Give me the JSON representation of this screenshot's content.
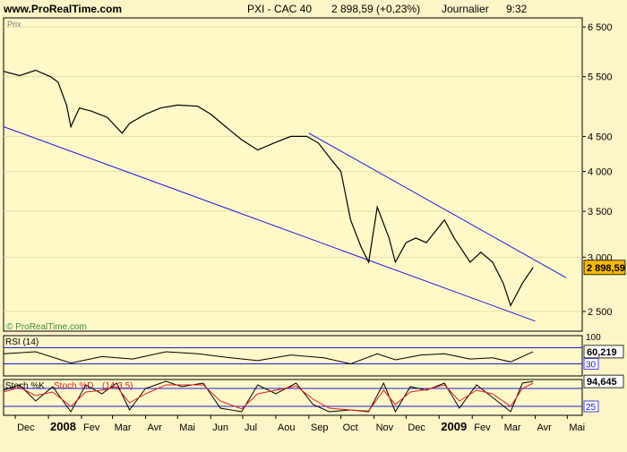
{
  "header": {
    "site": "www.ProRealTime.com",
    "instrument": "PXI - CAC 40",
    "quote": "2 898,59 (+0,23%)",
    "period": "Journalier",
    "time": "9:32"
  },
  "watermark": "© ProRealTime.com",
  "colors": {
    "background": "#fdf5c7",
    "price": "#000000",
    "trendline": "#1a1adf",
    "last_price_badge": "#f5b800",
    "rsi_line": "#000000",
    "stoch_k": "#000000",
    "stoch_d": "#e02020",
    "ref_line": "#1a1adf"
  },
  "chart_data": [
    {
      "type": "line",
      "panel": "price",
      "panel_label": "Prix",
      "title": "PXI - CAC 40",
      "subtitle": "2 898,59 (+0,23%)  Journalier  9:32",
      "x_axis_labels": [
        "Dec",
        "2008",
        "Fev",
        "Mar",
        "Avr",
        "Mai",
        "Jun",
        "Jul",
        "Aou",
        "Sep",
        "Oct",
        "Nov",
        "Dec",
        "2009",
        "Fev",
        "Mar",
        "Avr",
        "Mai"
      ],
      "y_scale": "log",
      "ylim": [
        2340,
        6700
      ],
      "y_ticks": [
        2500,
        3000,
        3500,
        4000,
        4500,
        5500,
        6500
      ],
      "y_tick_labels": [
        "2 500",
        "3 000",
        "3 500",
        "4 000",
        "4 500",
        "5 500",
        "6 500"
      ],
      "last_value": 2898.59,
      "last_value_label": "2 898,59",
      "series": [
        {
          "x": [
            "2007-11-20",
            "2007-12-05",
            "2007-12-20",
            "2008-01-03",
            "2008-01-10",
            "2008-01-18",
            "2008-01-22",
            "2008-01-30",
            "2008-02-10",
            "2008-02-25",
            "2008-03-10",
            "2008-03-17",
            "2008-04-01",
            "2008-04-15",
            "2008-05-01",
            "2008-05-20",
            "2008-06-01",
            "2008-06-15",
            "2008-06-30",
            "2008-07-15",
            "2008-07-30",
            "2008-08-15",
            "2008-08-30",
            "2008-09-10",
            "2008-09-20",
            "2008-10-01",
            "2008-10-10",
            "2008-10-20",
            "2008-10-27",
            "2008-11-04",
            "2008-11-15",
            "2008-11-21",
            "2008-12-01",
            "2008-12-10",
            "2008-12-20",
            "2009-01-06",
            "2009-01-15",
            "2009-01-30",
            "2009-02-09",
            "2009-02-20",
            "2009-03-02",
            "2009-03-09",
            "2009-03-20",
            "2009-03-30"
          ],
          "y": [
            5600,
            5520,
            5620,
            5500,
            5400,
            5000,
            4650,
            4950,
            4900,
            4800,
            4550,
            4700,
            4850,
            4950,
            5000,
            4980,
            4850,
            4650,
            4450,
            4300,
            4400,
            4500,
            4500,
            4400,
            4200,
            4000,
            3400,
            3100,
            2950,
            3550,
            3200,
            2950,
            3150,
            3200,
            3150,
            3400,
            3200,
            2950,
            3050,
            2950,
            2750,
            2550,
            2750,
            2898.59
          ]
        }
      ],
      "trendlines": [
        {
          "from": {
            "x": "2007-11-20",
            "y": 4650
          },
          "to": {
            "x": "2009-04-01",
            "y": 2420
          }
        },
        {
          "from": {
            "x": "2008-09-01",
            "y": 4550
          },
          "to": {
            "x": "2009-04-30",
            "y": 2800
          }
        }
      ]
    },
    {
      "type": "line",
      "panel": "rsi",
      "panel_label": "RSI (14)",
      "ylim": [
        0,
        100
      ],
      "y_tick_labels": [
        "100"
      ],
      "ref_lines": [
        30,
        70
      ],
      "ref_labels": [
        "30"
      ],
      "last_value": 60.219,
      "last_value_label": "60,219",
      "series": [
        {
          "x": [
            "2007-11-20",
            "2007-12-20",
            "2008-01-22",
            "2008-02-20",
            "2008-03-20",
            "2008-04-20",
            "2008-05-20",
            "2008-06-20",
            "2008-07-15",
            "2008-08-15",
            "2008-09-15",
            "2008-10-10",
            "2008-11-04",
            "2008-11-21",
            "2008-12-15",
            "2009-01-06",
            "2009-01-30",
            "2009-02-20",
            "2009-03-09",
            "2009-03-30"
          ],
          "y": [
            55,
            60,
            32,
            48,
            42,
            60,
            55,
            45,
            38,
            52,
            45,
            30,
            55,
            40,
            52,
            55,
            42,
            45,
            35,
            60.219
          ]
        }
      ]
    },
    {
      "type": "line",
      "panel": "stochastic",
      "panel_label": "Stoch %K Stoch %D (14,3,5)",
      "ylim": [
        0,
        100
      ],
      "ref_lines": [
        25,
        75
      ],
      "ref_labels": [
        "25"
      ],
      "last_value": 94.645,
      "last_value_label": "94,645",
      "series": [
        {
          "name": "Stoch %K",
          "x": [
            "2007-11-20",
            "2007-12-05",
            "2007-12-20",
            "2008-01-05",
            "2008-01-22",
            "2008-02-05",
            "2008-02-20",
            "2008-03-05",
            "2008-03-17",
            "2008-04-01",
            "2008-04-20",
            "2008-05-05",
            "2008-05-25",
            "2008-06-10",
            "2008-06-30",
            "2008-07-15",
            "2008-08-01",
            "2008-08-20",
            "2008-09-05",
            "2008-09-20",
            "2008-10-10",
            "2008-10-27",
            "2008-11-10",
            "2008-11-21",
            "2008-12-05",
            "2008-12-20",
            "2009-01-06",
            "2009-01-20",
            "2009-02-05",
            "2009-02-20",
            "2009-03-09",
            "2009-03-20",
            "2009-03-30"
          ],
          "y": [
            70,
            85,
            40,
            80,
            10,
            85,
            60,
            90,
            15,
            75,
            95,
            80,
            90,
            20,
            10,
            85,
            60,
            90,
            30,
            10,
            15,
            10,
            90,
            10,
            80,
            70,
            90,
            20,
            85,
            50,
            10,
            90,
            94.645
          ]
        },
        {
          "name": "Stoch %D",
          "x": [
            "2007-11-20",
            "2007-12-05",
            "2007-12-20",
            "2008-01-05",
            "2008-01-22",
            "2008-02-05",
            "2008-02-20",
            "2008-03-05",
            "2008-03-17",
            "2008-04-01",
            "2008-04-20",
            "2008-05-05",
            "2008-05-25",
            "2008-06-10",
            "2008-06-30",
            "2008-07-15",
            "2008-08-01",
            "2008-08-20",
            "2008-09-05",
            "2008-09-20",
            "2008-10-10",
            "2008-10-27",
            "2008-11-10",
            "2008-11-21",
            "2008-12-05",
            "2008-12-20",
            "2009-01-06",
            "2009-01-20",
            "2009-02-05",
            "2009-02-20",
            "2009-03-09",
            "2009-03-20",
            "2009-03-30"
          ],
          "y": [
            65,
            78,
            55,
            65,
            25,
            65,
            70,
            80,
            35,
            60,
            85,
            85,
            85,
            40,
            18,
            60,
            70,
            82,
            45,
            20,
            15,
            12,
            70,
            30,
            65,
            72,
            85,
            40,
            70,
            60,
            25,
            75,
            90
          ]
        }
      ]
    }
  ]
}
